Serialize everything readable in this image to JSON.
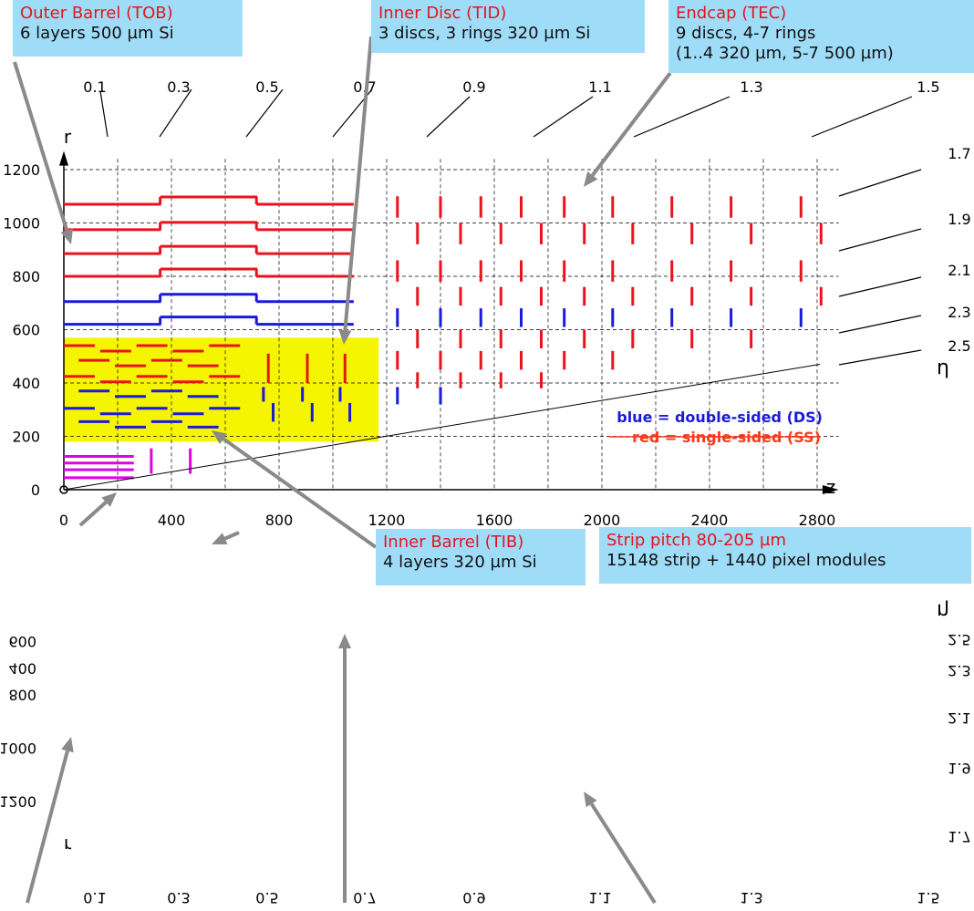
{
  "callouts": {
    "tob": {
      "title": "Outer Barrel (TOB)",
      "lines": [
        "6 layers 500 µm Si"
      ]
    },
    "tid": {
      "title": "Inner Disc (TID)",
      "lines": [
        "3 discs, 3 rings 320 µm Si"
      ]
    },
    "tec": {
      "title": "Endcap (TEC)",
      "lines": [
        "9 discs, 4-7 rings",
        "(1..4 320 µm, 5-7 500 µm)"
      ]
    },
    "tib": {
      "title": "Inner Barrel (TIB)",
      "lines": [
        "4 layers 320 µm Si"
      ]
    },
    "pitch": {
      "title": "Strip pitch 80-205 µm",
      "lines": [
        "15148 strip + 1440 pixel modules"
      ]
    }
  },
  "axes": {
    "r_label": "r",
    "z_label": "z",
    "eta_label": "η",
    "r_ticks": [
      "0",
      "200",
      "400",
      "600",
      "800",
      "1000",
      "1200"
    ],
    "z_ticks": [
      "0",
      "400",
      "800",
      "1200",
      "1600",
      "2000",
      "2400",
      "2800"
    ],
    "eta_top": [
      "0.1",
      "0.3",
      "0.5",
      "0.7",
      "0.9",
      "1.1",
      "1.3",
      "1.5"
    ],
    "eta_right": [
      "1.7",
      "1.9",
      "2.1",
      "2.3",
      "2.5"
    ]
  },
  "legend": {
    "ds": "blue = double-sided (DS)",
    "ss": "red = single-sided (SS)"
  },
  "colors": {
    "single_sided": "#e8141d",
    "double_sided": "#1a1adb",
    "pixel": "#e000e0",
    "inner_region": "#f5f500",
    "callout_bg": "#9fdcf8",
    "arrow": "#8a8a8a"
  }
}
